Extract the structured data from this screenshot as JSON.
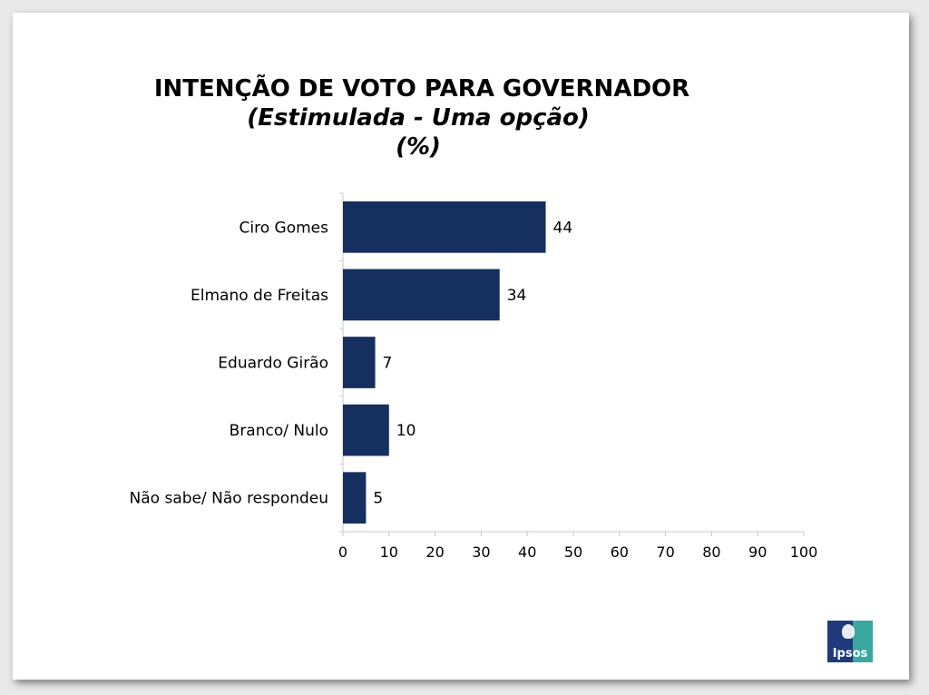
{
  "title": "INTENÇÃO DE VOTO PARA GOVERNADOR",
  "subtitle": "(Estimulada - Uma opção)",
  "unit": "(%)",
  "logo_text": "Ipsos",
  "colors": {
    "bar": "#15305e",
    "axis": "#c8c8c8"
  },
  "chart_data": {
    "type": "bar",
    "orientation": "horizontal",
    "title": "INTENÇÃO DE VOTO PARA GOVERNADOR",
    "subtitle": "(Estimulada - Uma opção)",
    "categories": [
      "Ciro Gomes",
      "Elmano de Freitas",
      "Eduardo Girão",
      "Branco/ Nulo",
      "Não sabe/ Não respondeu"
    ],
    "values": [
      44,
      34,
      7,
      10,
      5
    ],
    "xlim": [
      0,
      100
    ],
    "xticks": [
      0,
      10,
      20,
      30,
      40,
      50,
      60,
      70,
      80,
      90,
      100
    ],
    "data_labels": true,
    "grid": false,
    "legend": "none"
  }
}
